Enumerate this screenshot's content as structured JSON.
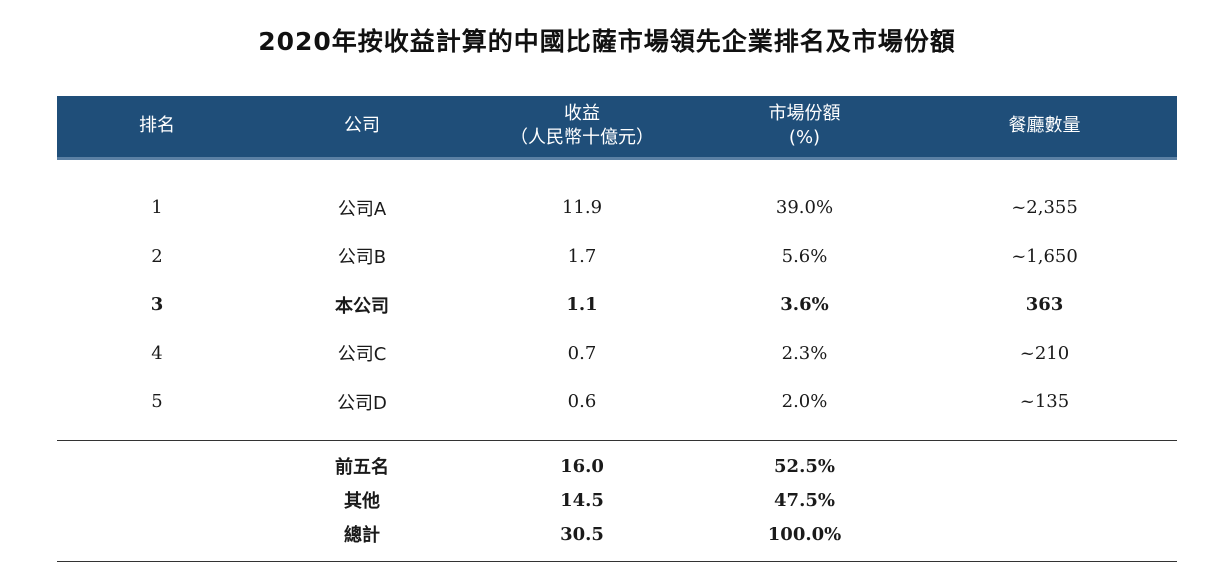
{
  "title": "2020年按收益計算的中國比薩市場領先企業排名及市場份額",
  "header": {
    "rank": "排名",
    "company": "公司",
    "revenue_line1": "收益",
    "revenue_line2": "（人民幣十億元）",
    "share_line1": "市場份額",
    "share_line2": "(%)",
    "restaurants": "餐廳數量"
  },
  "rows": [
    {
      "rank": "1",
      "company": "公司A",
      "revenue": "11.9",
      "share": "39.0%",
      "restaurants": "~2,355"
    },
    {
      "rank": "2",
      "company": "公司B",
      "revenue": "1.7",
      "share": "5.6%",
      "restaurants": "~1,650"
    },
    {
      "rank": "3",
      "company": "本公司",
      "revenue": "1.1",
      "share": "3.6%",
      "restaurants": "363"
    },
    {
      "rank": "4",
      "company": "公司C",
      "revenue": "0.7",
      "share": "2.3%",
      "restaurants": "~210"
    },
    {
      "rank": "5",
      "company": "公司D",
      "revenue": "0.6",
      "share": "2.0%",
      "restaurants": "~135"
    }
  ],
  "totals": [
    {
      "label": "前五名",
      "revenue": "16.0",
      "share": "52.5%"
    },
    {
      "label": "其他",
      "revenue": "14.5",
      "share": "47.5%"
    },
    {
      "label": "總計",
      "revenue": "30.5",
      "share": "100.0%"
    }
  ]
}
